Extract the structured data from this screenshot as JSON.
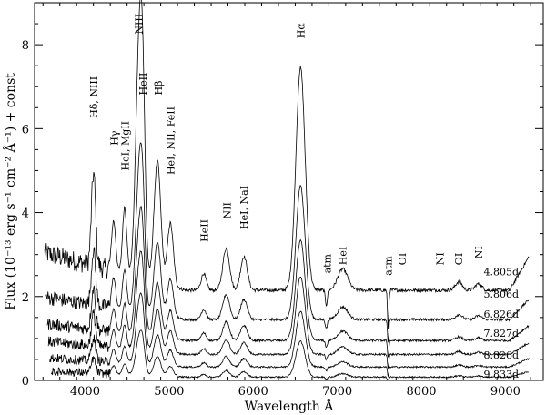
{
  "chart_data": {
    "type": "line",
    "xlabel": "Wavelength Å",
    "ylabel": "Flux (10⁻¹³ erg s⁻¹ cm⁻² Å⁻¹) + const",
    "xlim": [
      3400,
      9450
    ],
    "ylim": [
      0,
      9.0
    ],
    "x_ticks": [
      4000,
      5000,
      6000,
      7000,
      8000,
      9000
    ],
    "y_ticks": [
      0,
      2,
      4,
      6,
      8
    ],
    "x_tick_labels": [
      "4000",
      "5000",
      "6000",
      "7000",
      "8000",
      "9000"
    ],
    "y_tick_labels": [
      "0",
      "2",
      "4",
      "6",
      "8"
    ],
    "series": [
      {
        "name": "4.805d",
        "level": 2.15,
        "scale": 1.0,
        "label_x": 8950,
        "label_y": 2.5,
        "peaks": [
          [
            4101,
            2.2,
            25
          ],
          [
            4340,
            1.2,
            25
          ],
          [
            4471,
            1.6,
            25
          ],
          [
            4640,
            5.0,
            40
          ],
          [
            4686,
            3.4,
            30
          ],
          [
            4861,
            2.9,
            40
          ],
          [
            5015,
            1.5,
            35
          ],
          [
            5411,
            0.4,
            30
          ],
          [
            5679,
            1.0,
            40
          ],
          [
            5890,
            0.8,
            40
          ],
          [
            6563,
            5.3,
            55
          ],
          [
            7065,
            0.5,
            60
          ],
          [
            8446,
            0.2,
            40
          ],
          [
            8680,
            0.15,
            40
          ]
        ]
      },
      {
        "name": "5.806d",
        "level": 1.45,
        "scale": 0.6,
        "label_x": 8950,
        "label_y": 1.97,
        "peaks": [
          [
            4101,
            2.2,
            25
          ],
          [
            4340,
            1.2,
            25
          ],
          [
            4471,
            1.6,
            25
          ],
          [
            4640,
            5.0,
            40
          ],
          [
            4686,
            3.4,
            30
          ],
          [
            4861,
            2.9,
            40
          ],
          [
            5015,
            1.5,
            35
          ],
          [
            5411,
            0.4,
            30
          ],
          [
            5679,
            1.0,
            40
          ],
          [
            5890,
            0.8,
            40
          ],
          [
            6563,
            5.3,
            55
          ],
          [
            7065,
            0.5,
            60
          ],
          [
            8446,
            0.2,
            40
          ],
          [
            8680,
            0.15,
            40
          ]
        ]
      },
      {
        "name": "6.826d",
        "level": 0.95,
        "scale": 0.45,
        "label_x": 8950,
        "label_y": 1.5,
        "peaks": [
          [
            4101,
            2.2,
            25
          ],
          [
            4340,
            1.2,
            25
          ],
          [
            4471,
            1.6,
            25
          ],
          [
            4640,
            5.0,
            40
          ],
          [
            4686,
            3.4,
            30
          ],
          [
            4861,
            2.9,
            40
          ],
          [
            5015,
            1.5,
            35
          ],
          [
            5411,
            0.4,
            30
          ],
          [
            5679,
            1.0,
            40
          ],
          [
            5890,
            0.8,
            40
          ],
          [
            6563,
            5.3,
            55
          ],
          [
            7065,
            0.5,
            60
          ],
          [
            8446,
            0.2,
            40
          ],
          [
            8680,
            0.15,
            40
          ]
        ]
      },
      {
        "name": "7.827d",
        "level": 0.62,
        "scale": 0.35,
        "label_x": 8950,
        "label_y": 1.04,
        "peaks": [
          [
            4101,
            2.2,
            25
          ],
          [
            4340,
            1.2,
            25
          ],
          [
            4471,
            1.6,
            25
          ],
          [
            4640,
            5.0,
            40
          ],
          [
            4686,
            3.4,
            30
          ],
          [
            4861,
            2.9,
            40
          ],
          [
            5015,
            1.5,
            35
          ],
          [
            5411,
            0.4,
            30
          ],
          [
            5679,
            1.0,
            40
          ],
          [
            5890,
            0.8,
            40
          ],
          [
            6563,
            5.3,
            55
          ],
          [
            7065,
            0.5,
            60
          ],
          [
            8446,
            0.2,
            40
          ],
          [
            8680,
            0.15,
            40
          ]
        ]
      },
      {
        "name": "8.826d",
        "level": 0.32,
        "scale": 0.25,
        "label_x": 8950,
        "label_y": 0.52,
        "peaks": [
          [
            4101,
            2.2,
            25
          ],
          [
            4340,
            1.2,
            25
          ],
          [
            4471,
            1.6,
            25
          ],
          [
            4640,
            5.0,
            40
          ],
          [
            4686,
            3.4,
            30
          ],
          [
            4861,
            2.9,
            40
          ],
          [
            5015,
            1.5,
            35
          ],
          [
            5411,
            0.4,
            30
          ],
          [
            5679,
            1.0,
            40
          ],
          [
            5890,
            0.8,
            40
          ],
          [
            6563,
            5.3,
            55
          ],
          [
            7065,
            0.5,
            60
          ],
          [
            8446,
            0.2,
            40
          ],
          [
            8680,
            0.15,
            40
          ]
        ]
      },
      {
        "name": "9.833d",
        "level": 0.08,
        "scale": 0.16,
        "label_x": 8950,
        "label_y": 0.06,
        "peaks": [
          [
            4101,
            2.2,
            25
          ],
          [
            4340,
            1.2,
            25
          ],
          [
            4471,
            1.6,
            25
          ],
          [
            4640,
            5.0,
            40
          ],
          [
            4686,
            3.4,
            30
          ],
          [
            4861,
            2.9,
            40
          ],
          [
            5015,
            1.5,
            35
          ],
          [
            5411,
            0.4,
            30
          ],
          [
            5679,
            1.0,
            40
          ],
          [
            5890,
            0.8,
            40
          ],
          [
            6563,
            5.3,
            55
          ],
          [
            7065,
            0.5,
            60
          ],
          [
            8446,
            0.2,
            40
          ],
          [
            8680,
            0.15,
            40
          ]
        ]
      }
    ],
    "annotations": [
      {
        "text": "Hδ, NIII",
        "x": 4101,
        "y": 6.25,
        "vertical": true
      },
      {
        "text": "Hγ",
        "x": 4345,
        "y": 5.6,
        "vertical": true
      },
      {
        "text": "HeI, MgII",
        "x": 4475,
        "y": 5.0,
        "vertical": true
      },
      {
        "text": "NIII",
        "x": 4640,
        "y": 8.25,
        "vertical": true
      },
      {
        "text": "HeII",
        "x": 4690,
        "y": 6.8,
        "vertical": true
      },
      {
        "text": "Hβ",
        "x": 4870,
        "y": 6.8,
        "vertical": true
      },
      {
        "text": "HeI, NII, FeII",
        "x": 5020,
        "y": 4.9,
        "vertical": true
      },
      {
        "text": "HeII",
        "x": 5420,
        "y": 3.3,
        "vertical": true
      },
      {
        "text": "NII",
        "x": 5690,
        "y": 3.85,
        "vertical": true
      },
      {
        "text": "HeI, NaI",
        "x": 5890,
        "y": 3.6,
        "vertical": true
      },
      {
        "text": "Hα",
        "x": 6563,
        "y": 8.15,
        "vertical": true
      },
      {
        "text": "atm",
        "x": 6880,
        "y": 2.55,
        "vertical": true
      },
      {
        "text": "HeI",
        "x": 7065,
        "y": 2.75,
        "vertical": true
      },
      {
        "text": "atm",
        "x": 7605,
        "y": 2.5,
        "vertical": true
      },
      {
        "text": "OI",
        "x": 7774,
        "y": 2.75,
        "vertical": true
      },
      {
        "text": "NI",
        "x": 8220,
        "y": 2.75,
        "vertical": true
      },
      {
        "text": "OI",
        "x": 8446,
        "y": 2.75,
        "vertical": true
      },
      {
        "text": "NI",
        "x": 8680,
        "y": 2.9,
        "vertical": true
      }
    ]
  }
}
